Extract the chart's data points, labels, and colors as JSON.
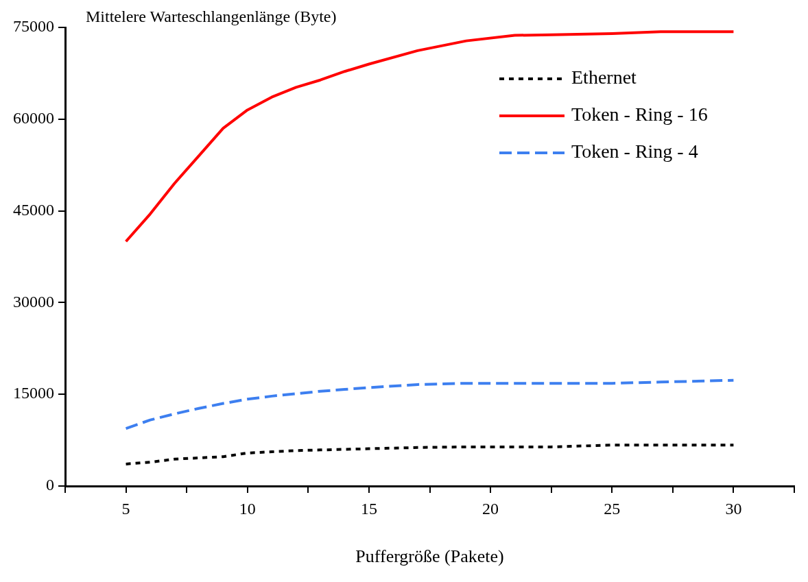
{
  "chart_data": {
    "type": "line",
    "xlabel": "Puffergröße (Pakete)",
    "ylabel": "Mittelere Warteschlangenlänge (Byte)",
    "x": [
      5,
      6,
      7,
      8,
      9,
      10,
      11,
      12,
      13,
      14,
      15,
      17,
      19,
      21,
      22.5,
      25,
      27,
      30
    ],
    "series": [
      {
        "name": "Ethernet",
        "color": "#000000",
        "line_style": "dotted",
        "values": [
          3600,
          3900,
          4400,
          4600,
          4800,
          5400,
          5600,
          5800,
          5900,
          6000,
          6100,
          6300,
          6400,
          6400,
          6400,
          6700,
          6700,
          6700
        ]
      },
      {
        "name": "Token - Ring - 16",
        "color": "#ff0000",
        "line_style": "solid",
        "values": [
          40000,
          44500,
          49500,
          54000,
          58500,
          61500,
          63600,
          65200,
          66400,
          67800,
          69000,
          71200,
          72800,
          73700,
          73800,
          74000,
          74300,
          74300
        ]
      },
      {
        "name": "Token - Ring - 4",
        "color": "#3d7ff0",
        "line_style": "dashed",
        "values": [
          9400,
          10800,
          11800,
          12700,
          13500,
          14200,
          14700,
          15100,
          15500,
          15800,
          16100,
          16600,
          16800,
          16800,
          16800,
          16800,
          17000,
          17300
        ]
      }
    ],
    "xlim": [
      2.5,
      32.5
    ],
    "xticks": [
      {
        "value": 2.5,
        "label": null
      },
      5,
      {
        "value": 7.5,
        "label": null
      },
      10,
      {
        "value": 12.5,
        "label": null
      },
      15,
      {
        "value": 17.5,
        "label": null
      },
      20,
      {
        "value": 22.5,
        "label": null
      },
      25,
      {
        "value": 27.5,
        "label": null
      },
      30,
      {
        "value": 32.5,
        "label": null
      }
    ],
    "ylim": [
      0,
      75000
    ],
    "yticks": [
      0,
      15000,
      30000,
      45000,
      60000,
      75000
    ],
    "grid": false,
    "legend": "top right",
    "marker": "none"
  }
}
